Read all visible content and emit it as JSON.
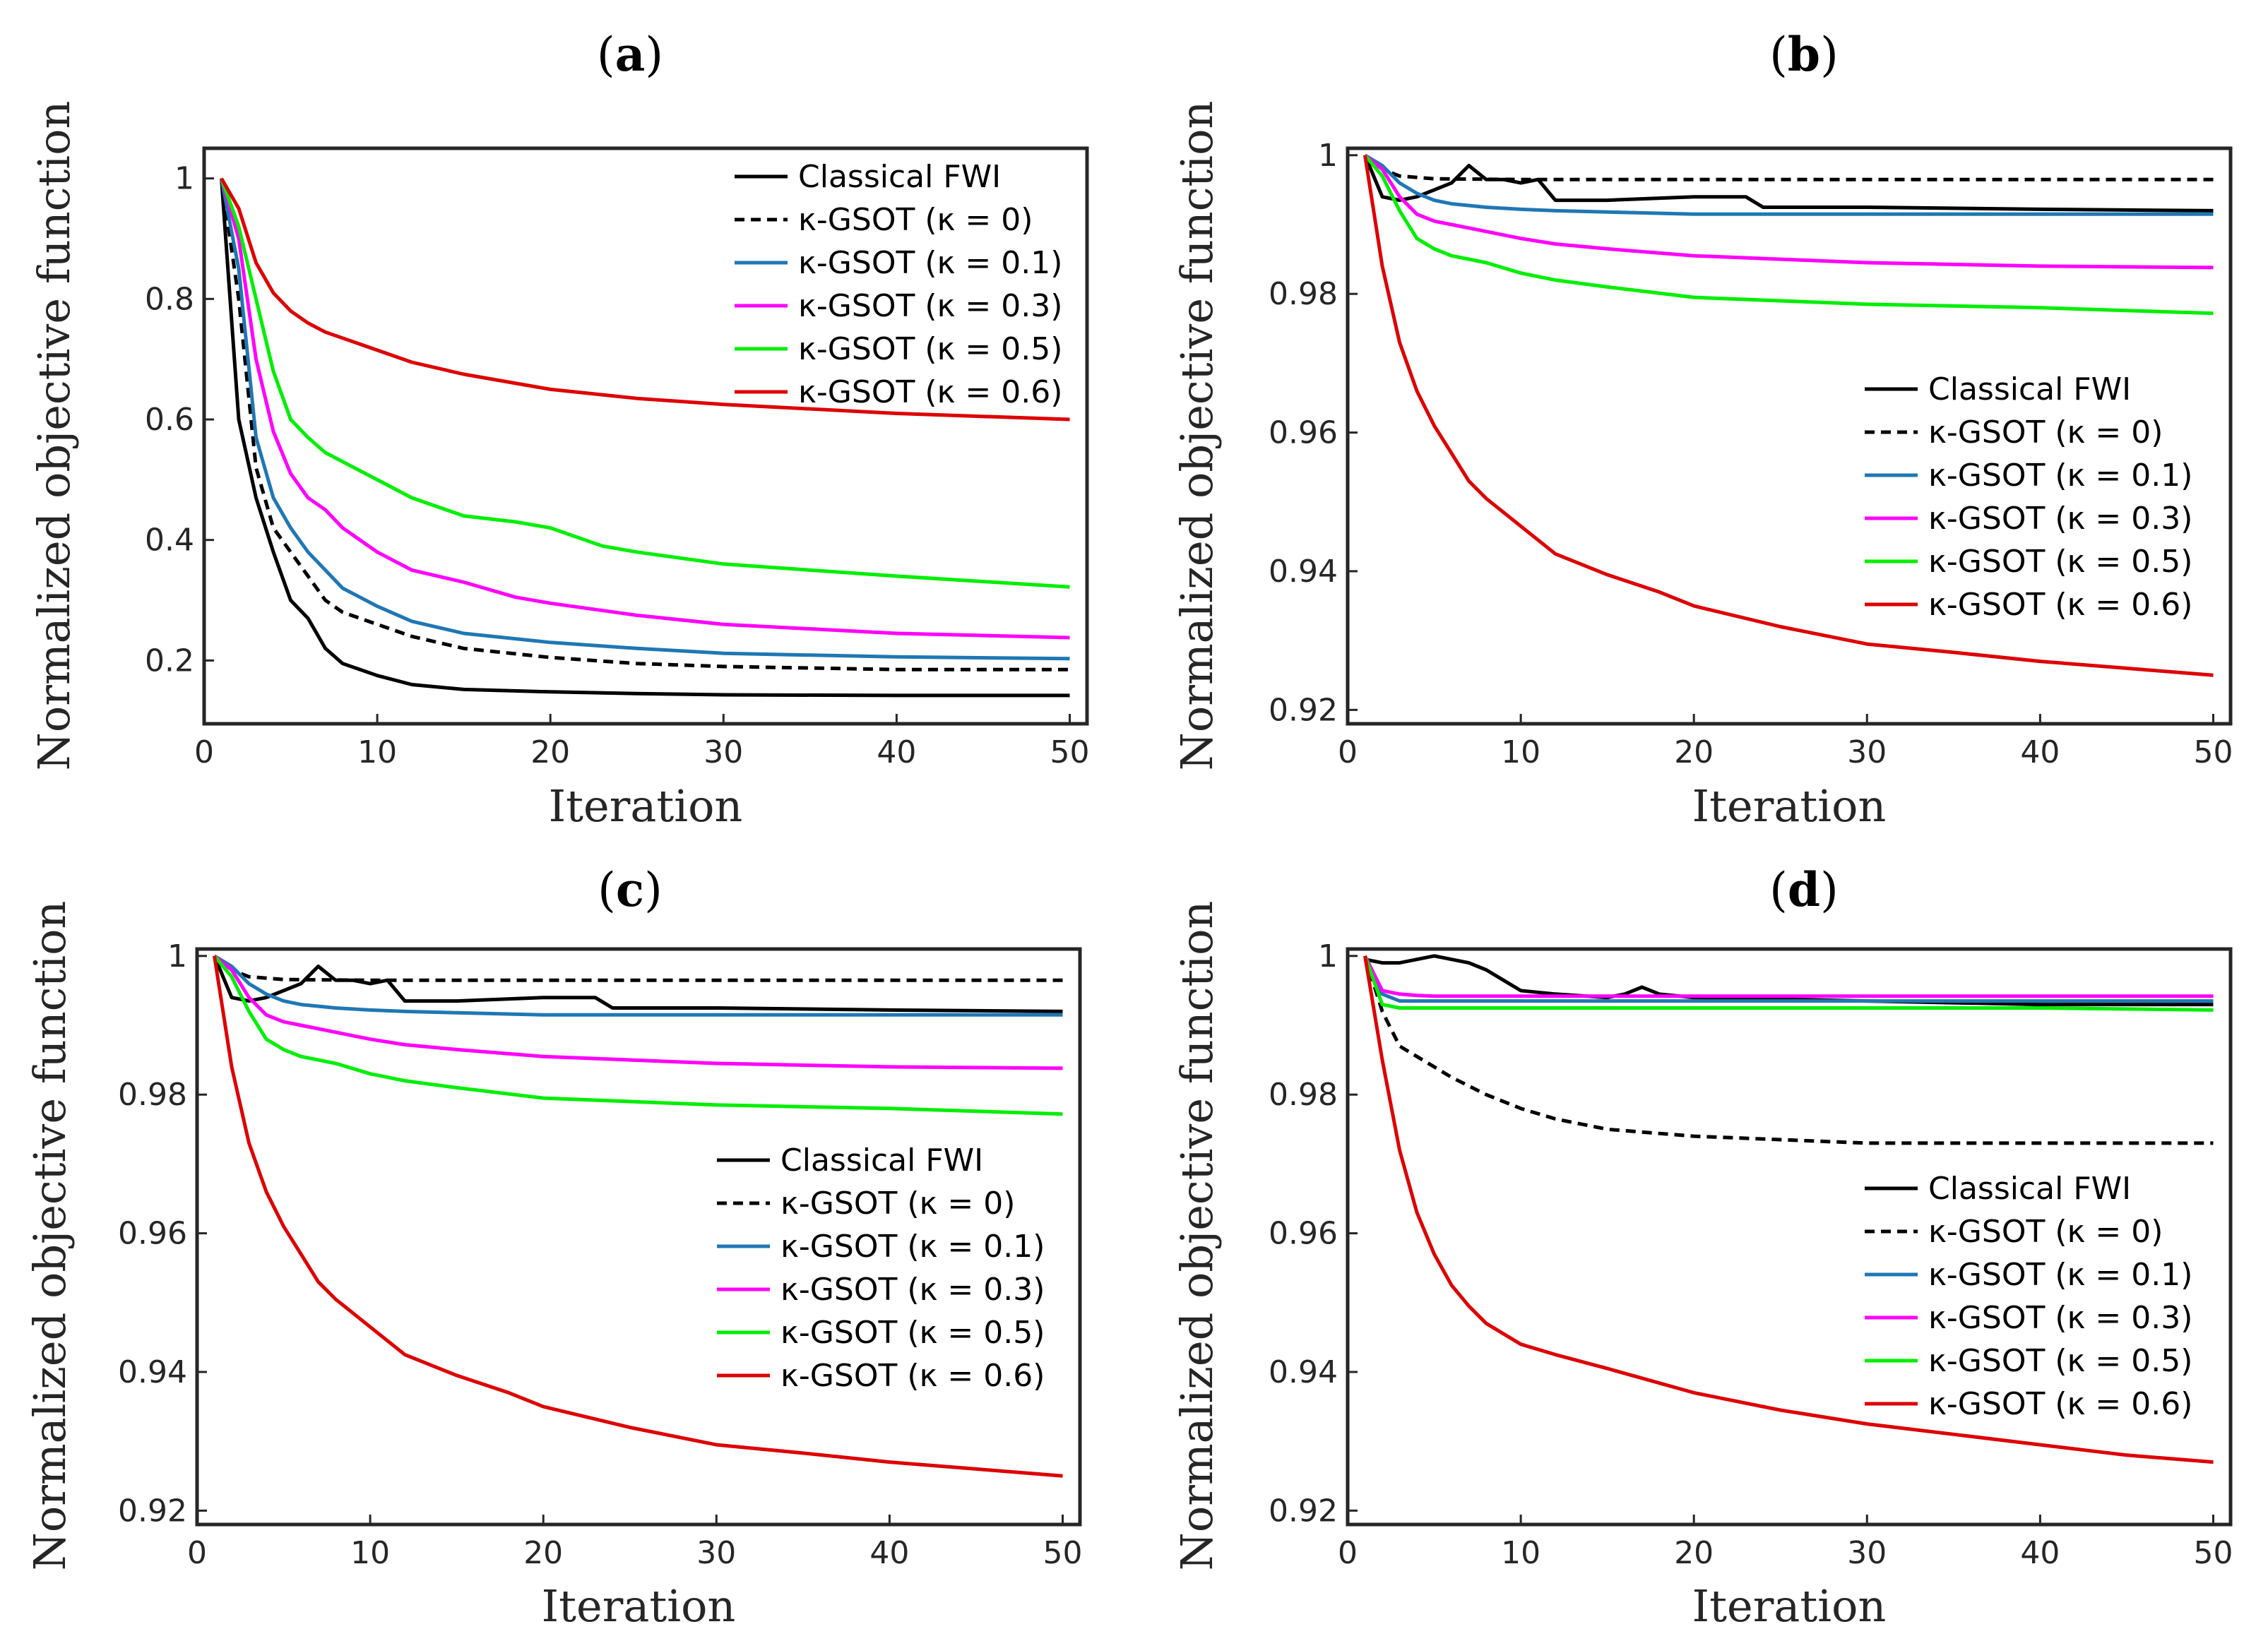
{
  "figure": {
    "xlabel": "Iteration",
    "ylabel": "Normalized objective function",
    "series_names": [
      "Classical FWI",
      "κ-GSOT (κ = 0)",
      "κ-GSOT (κ = 0.1)",
      "κ-GSOT (κ = 0.3)",
      "κ-GSOT (κ = 0.5)",
      "κ-GSOT (κ = 0.6)"
    ],
    "colors": {
      "classical": "#000000",
      "k0": "#000000",
      "k01": "#1f77b4",
      "k03": "#ff00ff",
      "k05": "#00ee00",
      "k06": "#dd0000"
    }
  },
  "chart_data": [
    {
      "type": "line",
      "title_letter": "a",
      "xlabel": "Iteration",
      "ylabel": "Normalized objective function",
      "xlim": [
        0,
        51
      ],
      "ylim": [
        0.095,
        1.05
      ],
      "xticks": [
        0,
        10,
        20,
        30,
        40,
        50
      ],
      "yticks": [
        0.2,
        0.4,
        0.6,
        0.8,
        1
      ],
      "ytick_labels": [
        "0.2",
        "0.4",
        "0.6",
        "0.8",
        "1"
      ],
      "legend_position": "top-right",
      "series": [
        {
          "name": "Classical FWI",
          "key": "classical",
          "dash": false,
          "x": [
            1,
            2,
            3,
            4,
            5,
            6,
            7,
            8,
            10,
            12,
            15,
            20,
            25,
            30,
            40,
            50
          ],
          "y": [
            1.0,
            0.6,
            0.47,
            0.38,
            0.3,
            0.27,
            0.22,
            0.195,
            0.175,
            0.16,
            0.152,
            0.148,
            0.145,
            0.143,
            0.142,
            0.142
          ]
        },
        {
          "name": "κ-GSOT (κ = 0)",
          "key": "k0",
          "dash": true,
          "x": [
            1,
            2,
            3,
            4,
            5,
            6,
            7,
            8,
            10,
            12,
            15,
            20,
            25,
            30,
            40,
            50
          ],
          "y": [
            1.0,
            0.8,
            0.52,
            0.42,
            0.38,
            0.34,
            0.3,
            0.28,
            0.26,
            0.24,
            0.22,
            0.205,
            0.195,
            0.19,
            0.185,
            0.185
          ]
        },
        {
          "name": "κ-GSOT (κ = 0.1)",
          "key": "k01",
          "dash": false,
          "x": [
            1,
            2,
            3,
            4,
            5,
            6,
            7,
            8,
            10,
            12,
            15,
            20,
            25,
            30,
            40,
            50
          ],
          "y": [
            1.0,
            0.85,
            0.57,
            0.47,
            0.42,
            0.38,
            0.35,
            0.32,
            0.29,
            0.265,
            0.245,
            0.23,
            0.22,
            0.212,
            0.206,
            0.203
          ]
        },
        {
          "name": "κ-GSOT (κ = 0.3)",
          "key": "k03",
          "dash": false,
          "x": [
            1,
            2,
            3,
            4,
            5,
            6,
            7,
            8,
            10,
            12,
            15,
            18,
            20,
            25,
            30,
            40,
            50
          ],
          "y": [
            1.0,
            0.9,
            0.7,
            0.58,
            0.51,
            0.47,
            0.45,
            0.42,
            0.38,
            0.35,
            0.33,
            0.305,
            0.295,
            0.275,
            0.26,
            0.245,
            0.238
          ]
        },
        {
          "name": "κ-GSOT (κ = 0.5)",
          "key": "k05",
          "dash": false,
          "x": [
            1,
            2,
            3,
            4,
            5,
            6,
            7,
            8,
            10,
            12,
            15,
            18,
            20,
            23,
            25,
            30,
            40,
            50
          ],
          "y": [
            1.0,
            0.92,
            0.8,
            0.68,
            0.6,
            0.57,
            0.545,
            0.53,
            0.5,
            0.47,
            0.44,
            0.43,
            0.42,
            0.39,
            0.38,
            0.36,
            0.34,
            0.322
          ]
        },
        {
          "name": "κ-GSOT (κ = 0.6)",
          "key": "k06",
          "dash": false,
          "x": [
            1,
            2,
            3,
            4,
            5,
            6,
            7,
            8,
            10,
            12,
            15,
            20,
            25,
            30,
            40,
            50
          ],
          "y": [
            1.0,
            0.95,
            0.86,
            0.81,
            0.78,
            0.76,
            0.745,
            0.735,
            0.715,
            0.695,
            0.675,
            0.65,
            0.635,
            0.625,
            0.61,
            0.6
          ]
        }
      ]
    },
    {
      "type": "line",
      "title_letter": "b",
      "xlabel": "Iteration",
      "ylabel": "Normalized objective function",
      "xlim": [
        0,
        51
      ],
      "ylim": [
        0.918,
        1.001
      ],
      "xticks": [
        0,
        10,
        20,
        30,
        40,
        50
      ],
      "yticks": [
        0.92,
        0.94,
        0.96,
        0.98,
        1
      ],
      "ytick_labels": [
        "0.92",
        "0.94",
        "0.96",
        "0.98",
        "1"
      ],
      "legend_position": "center-right",
      "series": [
        {
          "name": "Classical FWI",
          "key": "classical",
          "dash": false,
          "x": [
            1,
            2,
            3,
            4,
            5,
            6,
            7,
            8,
            9,
            10,
            11,
            12,
            15,
            20,
            23,
            24,
            30,
            40,
            50
          ],
          "y": [
            1.0,
            0.994,
            0.9935,
            0.994,
            0.995,
            0.996,
            0.9985,
            0.9965,
            0.9965,
            0.996,
            0.9965,
            0.9935,
            0.9935,
            0.994,
            0.994,
            0.9925,
            0.9925,
            0.9922,
            0.992
          ]
        },
        {
          "name": "κ-GSOT (κ = 0)",
          "key": "k0",
          "dash": true,
          "x": [
            1,
            2,
            3,
            4,
            5,
            10,
            20,
            30,
            40,
            50
          ],
          "y": [
            1.0,
            0.998,
            0.997,
            0.9968,
            0.9966,
            0.9965,
            0.9965,
            0.9965,
            0.9965,
            0.9965
          ]
        },
        {
          "name": "κ-GSOT (κ = 0.1)",
          "key": "k01",
          "dash": false,
          "x": [
            1,
            2,
            3,
            4,
            5,
            6,
            8,
            10,
            12,
            15,
            20,
            30,
            40,
            50
          ],
          "y": [
            1.0,
            0.9985,
            0.996,
            0.9945,
            0.9935,
            0.993,
            0.9925,
            0.9922,
            0.992,
            0.9918,
            0.9915,
            0.9915,
            0.9915,
            0.9915
          ]
        },
        {
          "name": "κ-GSOT (κ = 0.3)",
          "key": "k03",
          "dash": false,
          "x": [
            1,
            2,
            3,
            4,
            5,
            6,
            8,
            10,
            12,
            15,
            20,
            25,
            30,
            40,
            50
          ],
          "y": [
            1.0,
            0.998,
            0.994,
            0.9915,
            0.9905,
            0.99,
            0.989,
            0.988,
            0.9872,
            0.9865,
            0.9855,
            0.985,
            0.9845,
            0.984,
            0.9838
          ]
        },
        {
          "name": "κ-GSOT (κ = 0.5)",
          "key": "k05",
          "dash": false,
          "x": [
            1,
            2,
            3,
            4,
            5,
            6,
            8,
            10,
            12,
            15,
            20,
            25,
            30,
            40,
            50
          ],
          "y": [
            1.0,
            0.997,
            0.992,
            0.988,
            0.9865,
            0.9855,
            0.9845,
            0.983,
            0.982,
            0.981,
            0.9795,
            0.979,
            0.9785,
            0.978,
            0.9772
          ]
        },
        {
          "name": "κ-GSOT (κ = 0.6)",
          "key": "k06",
          "dash": false,
          "x": [
            1,
            2,
            3,
            4,
            5,
            6,
            7,
            8,
            10,
            12,
            15,
            18,
            20,
            25,
            30,
            35,
            40,
            45,
            50
          ],
          "y": [
            1.0,
            0.984,
            0.973,
            0.966,
            0.961,
            0.957,
            0.953,
            0.9505,
            0.9465,
            0.9425,
            0.9395,
            0.937,
            0.935,
            0.932,
            0.9295,
            0.9283,
            0.927,
            0.926,
            0.925
          ]
        }
      ]
    },
    {
      "type": "line",
      "title_letter": "c",
      "xlabel": "Iteration",
      "ylabel": "Normalized objective function",
      "xlim": [
        0,
        51
      ],
      "ylim": [
        0.918,
        1.001
      ],
      "xticks": [
        0,
        10,
        20,
        30,
        40,
        50
      ],
      "yticks": [
        0.92,
        0.94,
        0.96,
        0.98,
        1
      ],
      "ytick_labels": [
        "0.92",
        "0.94",
        "0.96",
        "0.98",
        "1"
      ],
      "legend_position": "bottom-right",
      "series": [
        {
          "name": "Classical FWI",
          "key": "classical",
          "dash": false,
          "x": [
            1,
            2,
            3,
            4,
            5,
            6,
            7,
            8,
            9,
            10,
            11,
            12,
            15,
            20,
            23,
            24,
            30,
            40,
            50
          ],
          "y": [
            1.0,
            0.994,
            0.9935,
            0.994,
            0.995,
            0.996,
            0.9985,
            0.9965,
            0.9965,
            0.996,
            0.9965,
            0.9935,
            0.9935,
            0.994,
            0.994,
            0.9925,
            0.9925,
            0.9922,
            0.992
          ]
        },
        {
          "name": "κ-GSOT (κ = 0)",
          "key": "k0",
          "dash": true,
          "x": [
            1,
            2,
            3,
            4,
            5,
            10,
            20,
            30,
            40,
            50
          ],
          "y": [
            1.0,
            0.998,
            0.997,
            0.9968,
            0.9966,
            0.9965,
            0.9965,
            0.9965,
            0.9965,
            0.9965
          ]
        },
        {
          "name": "κ-GSOT (κ = 0.1)",
          "key": "k01",
          "dash": false,
          "x": [
            1,
            2,
            3,
            4,
            5,
            6,
            8,
            10,
            12,
            15,
            20,
            30,
            40,
            50
          ],
          "y": [
            1.0,
            0.9985,
            0.996,
            0.9945,
            0.9935,
            0.993,
            0.9925,
            0.9922,
            0.992,
            0.9918,
            0.9915,
            0.9915,
            0.9915,
            0.9915
          ]
        },
        {
          "name": "κ-GSOT (κ = 0.3)",
          "key": "k03",
          "dash": false,
          "x": [
            1,
            2,
            3,
            4,
            5,
            6,
            8,
            10,
            12,
            15,
            20,
            25,
            30,
            40,
            50
          ],
          "y": [
            1.0,
            0.998,
            0.994,
            0.9915,
            0.9905,
            0.99,
            0.989,
            0.988,
            0.9872,
            0.9865,
            0.9855,
            0.985,
            0.9845,
            0.984,
            0.9838
          ]
        },
        {
          "name": "κ-GSOT (κ = 0.5)",
          "key": "k05",
          "dash": false,
          "x": [
            1,
            2,
            3,
            4,
            5,
            6,
            8,
            10,
            12,
            15,
            20,
            25,
            30,
            40,
            50
          ],
          "y": [
            1.0,
            0.997,
            0.992,
            0.988,
            0.9865,
            0.9855,
            0.9845,
            0.983,
            0.982,
            0.981,
            0.9795,
            0.979,
            0.9785,
            0.978,
            0.9772
          ]
        },
        {
          "name": "κ-GSOT (κ = 0.6)",
          "key": "k06",
          "dash": false,
          "x": [
            1,
            2,
            3,
            4,
            5,
            6,
            7,
            8,
            10,
            12,
            15,
            18,
            20,
            25,
            30,
            35,
            40,
            45,
            50
          ],
          "y": [
            1.0,
            0.984,
            0.973,
            0.966,
            0.961,
            0.957,
            0.953,
            0.9505,
            0.9465,
            0.9425,
            0.9395,
            0.937,
            0.935,
            0.932,
            0.9295,
            0.9283,
            0.927,
            0.926,
            0.925
          ]
        }
      ]
    },
    {
      "type": "line",
      "title_letter": "d",
      "xlabel": "Iteration",
      "ylabel": "Normalized objective function",
      "xlim": [
        0,
        51
      ],
      "ylim": [
        0.918,
        1.001
      ],
      "xticks": [
        0,
        10,
        20,
        30,
        40,
        50
      ],
      "yticks": [
        0.92,
        0.94,
        0.96,
        0.98,
        1
      ],
      "ytick_labels": [
        "0.92",
        "0.94",
        "0.96",
        "0.98",
        "1"
      ],
      "legend_position": "bottom-right",
      "series": [
        {
          "name": "Classical FWI",
          "key": "classical",
          "dash": false,
          "x": [
            1,
            2,
            3,
            4,
            5,
            6,
            7,
            8,
            9,
            10,
            12,
            15,
            16,
            17,
            18,
            20,
            30,
            40,
            50
          ],
          "y": [
            0.9995,
            0.999,
            0.999,
            0.9995,
            1.0,
            0.9995,
            0.999,
            0.998,
            0.9965,
            0.995,
            0.9945,
            0.994,
            0.9945,
            0.9955,
            0.9945,
            0.994,
            0.9935,
            0.993,
            0.993
          ]
        },
        {
          "name": "κ-GSOT (κ = 0)",
          "key": "k0",
          "dash": true,
          "x": [
            1,
            2,
            3,
            4,
            5,
            6,
            8,
            10,
            12,
            15,
            20,
            25,
            30,
            40,
            50
          ],
          "y": [
            1.0,
            0.992,
            0.987,
            0.9855,
            0.984,
            0.9825,
            0.98,
            0.978,
            0.9765,
            0.975,
            0.974,
            0.9735,
            0.973,
            0.973,
            0.973
          ]
        },
        {
          "name": "κ-GSOT (κ = 0.1)",
          "key": "k01",
          "dash": false,
          "x": [
            1,
            2,
            3,
            4,
            5,
            10,
            20,
            30,
            40,
            50
          ],
          "y": [
            1.0,
            0.9945,
            0.9935,
            0.9935,
            0.9935,
            0.9935,
            0.9935,
            0.9935,
            0.9935,
            0.9935
          ]
        },
        {
          "name": "κ-GSOT (κ = 0.3)",
          "key": "k03",
          "dash": false,
          "x": [
            1,
            2,
            3,
            4,
            5,
            10,
            20,
            30,
            40,
            50
          ],
          "y": [
            1.0,
            0.995,
            0.9945,
            0.9943,
            0.9942,
            0.9942,
            0.9942,
            0.9942,
            0.9942,
            0.9942
          ]
        },
        {
          "name": "κ-GSOT (κ = 0.5)",
          "key": "k05",
          "dash": false,
          "x": [
            1,
            2,
            3,
            4,
            5,
            10,
            20,
            30,
            40,
            50
          ],
          "y": [
            1.0,
            0.993,
            0.9925,
            0.9925,
            0.9925,
            0.9925,
            0.9925,
            0.9925,
            0.9925,
            0.9922
          ]
        },
        {
          "name": "κ-GSOT (κ = 0.6)",
          "key": "k06",
          "dash": false,
          "x": [
            1,
            2,
            3,
            4,
            5,
            6,
            7,
            8,
            10,
            12,
            15,
            20,
            25,
            30,
            35,
            40,
            45,
            50
          ],
          "y": [
            1.0,
            0.985,
            0.972,
            0.963,
            0.957,
            0.9525,
            0.9495,
            0.947,
            0.944,
            0.9425,
            0.9405,
            0.937,
            0.9345,
            0.9325,
            0.931,
            0.9295,
            0.928,
            0.927
          ]
        }
      ]
    }
  ]
}
